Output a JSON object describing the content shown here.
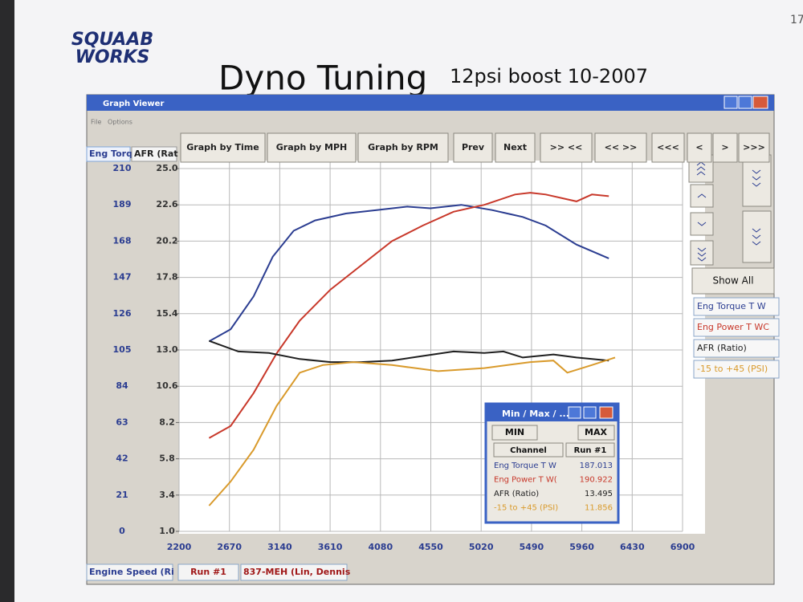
{
  "header": {
    "logo_line1": "SQUAAB",
    "logo_line2": "WORKS",
    "title": "Dyno Tuning",
    "subtitle": "12psi boost 10-2007",
    "page_number": "17"
  },
  "window": {
    "title": "Graph Viewer",
    "menu": [
      "File",
      "Options"
    ],
    "toolbar_buttons": [
      "Graph by Time",
      "Graph by MPH",
      "Graph by RPM",
      "Prev",
      "Next",
      ">> <<",
      "<< >>",
      "<<<",
      "<",
      ">",
      ">>>"
    ],
    "column_headers": [
      "Eng Torq",
      "AFR (Rat"
    ],
    "show_all": "Show All",
    "status_bar": [
      "Engine Speed (Ri",
      "Run #1",
      "837-MEH (Lin, Dennis"
    ]
  },
  "minmax_popup": {
    "title": "Min / Max / ...",
    "buttons": [
      "MIN",
      "MAX"
    ],
    "columns": [
      "Channel",
      "Run #1"
    ],
    "rows": [
      [
        "Eng Torque T W",
        187.013
      ],
      [
        "Eng Power T W(",
        190.922
      ],
      [
        "AFR (Ratio)",
        13.495
      ],
      [
        "-15 to +45 (PSI)",
        11.856
      ]
    ]
  },
  "chart_data": {
    "type": "line",
    "xlim": [
      2200,
      6900
    ],
    "xticks": [
      2200,
      2670,
      3140,
      3610,
      4080,
      4550,
      5020,
      5490,
      5960,
      6430,
      6900
    ],
    "ylim": [
      0,
      210
    ],
    "yticks": [
      0,
      21,
      42,
      63,
      84,
      105,
      126,
      147,
      168,
      189,
      210
    ],
    "y2lim": [
      1,
      25
    ],
    "y2ticks": [
      {
        "value": 1,
        "label": "1.0"
      },
      3.4,
      5.8,
      8.2,
      10.6,
      {
        "value": 13,
        "label": "13.0"
      },
      15.4,
      17.8,
      20.2,
      22.6,
      {
        "value": 25,
        "label": "25.0"
      }
    ],
    "grid": true,
    "series": [
      {
        "name": "Eng Torque T W",
        "color": "#2b3d91",
        "x": [
          2480,
          2681,
          2896,
          3075,
          3270,
          3470,
          3757,
          4044,
          4331,
          4547,
          4834,
          5121,
          5408,
          5623,
          5910,
          6212
        ],
        "values": [
          110,
          117,
          136,
          159,
          174,
          180,
          184,
          186,
          188,
          187,
          189,
          186,
          182,
          177,
          166,
          158
        ]
      },
      {
        "name": "Eng Power T WC",
        "color": "#c8382a",
        "x": [
          2480,
          2681,
          2896,
          3111,
          3327,
          3614,
          3901,
          4188,
          4475,
          4762,
          5049,
          5336,
          5479,
          5623,
          5910,
          6054,
          6212
        ],
        "values": [
          54,
          61,
          80,
          103,
          122,
          140,
          154,
          168,
          177,
          185,
          189,
          195,
          196,
          195,
          191,
          195,
          194
        ]
      },
      {
        "name": "AFR (Ratio)",
        "color": "#1e1e1e",
        "axis": "y2",
        "x": [
          2480,
          2753,
          3040,
          3327,
          3614,
          3901,
          4188,
          4475,
          4762,
          5049,
          5228,
          5408,
          5695,
          5910,
          6212
        ],
        "values": [
          13.6,
          12.9,
          12.8,
          12.4,
          12.2,
          12.2,
          12.3,
          12.6,
          12.9,
          12.8,
          12.9,
          12.5,
          12.7,
          12.5,
          12.3
        ]
      },
      {
        "name": "-15 to +45 (PSI)",
        "color": "#d99a2b",
        "axis": "y2",
        "x": [
          2480,
          2681,
          2896,
          3111,
          3327,
          3542,
          3829,
          4188,
          4618,
          5049,
          5479,
          5695,
          5824,
          6054,
          6270
        ],
        "values": [
          2.7,
          4.3,
          6.4,
          9.3,
          11.5,
          12.0,
          12.2,
          12.0,
          11.6,
          11.8,
          12.2,
          12.3,
          11.5,
          12.0,
          12.5
        ]
      }
    ]
  }
}
